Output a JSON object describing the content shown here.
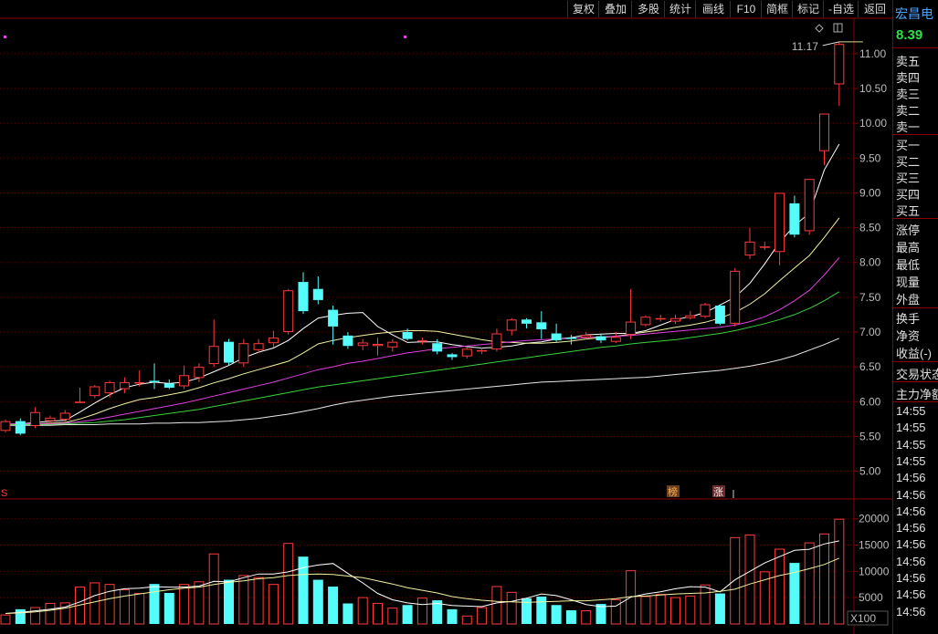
{
  "toolbar": {
    "buttons": [
      "复权",
      "叠加",
      "多股",
      "统计",
      "画线",
      "F10",
      "简框",
      "标记",
      "-自选",
      "返回"
    ]
  },
  "quote_panel": {
    "stock_name": "宏昌电",
    "price": "8.39",
    "price_color": "#2ee24b",
    "ask_labels": [
      "卖五",
      "卖四",
      "卖三",
      "卖二",
      "卖一"
    ],
    "bid_labels": [
      "买一",
      "买二",
      "买三",
      "买四",
      "买五"
    ],
    "stat_labels": [
      "涨停",
      "最高",
      "最低",
      "现量",
      "外盘"
    ],
    "stat_labels2": [
      "换手",
      "净资",
      "收益(-)"
    ],
    "status_label": "交易状态",
    "fund_label": "主力净额",
    "ticks": [
      "14:55",
      "14:55",
      "14:55",
      "14:55",
      "14:56",
      "14:56",
      "14:56",
      "14:56",
      "14:56",
      "14:56",
      "14:56",
      "14:56",
      "14:56"
    ]
  },
  "chart_data": {
    "type": "candlestick",
    "price_axis": {
      "ticks": [
        "11.00",
        "10.50",
        "10.00",
        "9.50",
        "9.00",
        "8.50",
        "8.00",
        "7.50",
        "7.00",
        "6.50",
        "6.00",
        "5.50",
        "5.00"
      ],
      "range": [
        4.85,
        11.3
      ]
    },
    "volume_axis": {
      "ticks": [
        "20000",
        "15000",
        "10000",
        "5000"
      ],
      "range": [
        0,
        21500
      ],
      "unit_label": "X100"
    },
    "max_label": "11.17",
    "event_markers": [
      {
        "label": "S"
      },
      {
        "label": "榜"
      },
      {
        "label": "涨"
      }
    ],
    "candles": [
      [
        5.58,
        5.72,
        5.74,
        5.56
      ],
      [
        5.72,
        5.54,
        5.76,
        5.52
      ],
      [
        5.65,
        5.85,
        5.92,
        5.62
      ],
      [
        5.72,
        5.77,
        5.8,
        5.68
      ],
      [
        5.74,
        5.84,
        5.88,
        5.7
      ],
      [
        6.0,
        6.0,
        6.2,
        5.98
      ],
      [
        6.08,
        6.22,
        6.24,
        6.05
      ],
      [
        6.12,
        6.28,
        6.3,
        6.06
      ],
      [
        6.18,
        6.28,
        6.35,
        6.12
      ],
      [
        6.26,
        6.28,
        6.45,
        6.22
      ],
      [
        6.3,
        6.28,
        6.55,
        6.18
      ],
      [
        6.26,
        6.2,
        6.32,
        6.18
      ],
      [
        6.22,
        6.38,
        6.52,
        6.18
      ],
      [
        6.34,
        6.5,
        6.55,
        6.28
      ],
      [
        6.54,
        6.8,
        7.18,
        6.5
      ],
      [
        6.86,
        6.56,
        6.9,
        6.52
      ],
      [
        6.55,
        6.84,
        6.9,
        6.5
      ],
      [
        6.74,
        6.84,
        6.9,
        6.7
      ],
      [
        6.84,
        6.92,
        7.02,
        6.78
      ],
      [
        7.0,
        7.6,
        7.62,
        6.96
      ],
      [
        7.72,
        7.3,
        7.86,
        7.26
      ],
      [
        7.62,
        7.46,
        7.8,
        7.4
      ],
      [
        7.32,
        7.08,
        7.38,
        6.82
      ],
      [
        6.95,
        6.8,
        7.0,
        6.76
      ],
      [
        6.8,
        6.85,
        6.9,
        6.74
      ],
      [
        6.8,
        6.83,
        6.92,
        6.66
      ],
      [
        6.78,
        6.86,
        6.9,
        6.72
      ],
      [
        7.0,
        6.9,
        7.05,
        6.88
      ],
      [
        6.86,
        6.88,
        6.92,
        6.82
      ],
      [
        6.84,
        6.72,
        6.9,
        6.68
      ],
      [
        6.68,
        6.64,
        6.7,
        6.6
      ],
      [
        6.65,
        6.76,
        6.78,
        6.62
      ],
      [
        6.72,
        6.74,
        6.78,
        6.68
      ],
      [
        6.75,
        6.98,
        7.05,
        6.72
      ],
      [
        7.02,
        7.18,
        7.2,
        6.95
      ],
      [
        7.18,
        7.12,
        7.2,
        7.05
      ],
      [
        7.14,
        7.04,
        7.3,
        6.9
      ],
      [
        6.98,
        6.88,
        7.12,
        6.85
      ],
      [
        6.92,
        6.9,
        6.96,
        6.82
      ],
      [
        6.92,
        6.96,
        7.0,
        6.9
      ],
      [
        6.94,
        6.88,
        6.98,
        6.84
      ],
      [
        6.86,
        6.93,
        7.0,
        6.84
      ],
      [
        6.96,
        7.15,
        7.62,
        6.9
      ],
      [
        7.1,
        7.22,
        7.24,
        7.08
      ],
      [
        7.18,
        7.2,
        7.25,
        7.15
      ],
      [
        7.15,
        7.2,
        7.25,
        7.12
      ],
      [
        7.2,
        7.24,
        7.3,
        7.18
      ],
      [
        7.22,
        7.4,
        7.42,
        7.2
      ],
      [
        7.38,
        7.12,
        7.4,
        7.1
      ],
      [
        7.12,
        7.88,
        7.92,
        7.08
      ],
      [
        8.1,
        8.3,
        8.5,
        8.05
      ],
      [
        8.22,
        8.23,
        8.3,
        8.18
      ],
      [
        8.15,
        9.0,
        9.0,
        7.96
      ],
      [
        8.85,
        8.4,
        8.96,
        8.36
      ],
      [
        8.45,
        9.2,
        9.2,
        8.4
      ],
      [
        9.6,
        10.14,
        10.14,
        9.4
      ],
      [
        10.56,
        11.14,
        11.17,
        10.25
      ]
    ],
    "ma": [
      {
        "name": "MA5",
        "color": "#ffffff",
        "values": [
          5.67,
          5.68,
          5.7,
          5.72,
          5.73,
          5.85,
          5.98,
          6.1,
          6.2,
          6.25,
          6.28,
          6.26,
          6.28,
          6.34,
          6.43,
          6.52,
          6.63,
          6.71,
          6.77,
          6.88,
          7.05,
          7.2,
          7.24,
          7.27,
          7.28,
          7.08,
          6.96,
          6.85,
          6.86,
          6.86,
          6.82,
          6.79,
          6.77,
          6.78,
          6.8,
          6.84,
          6.86,
          6.9,
          6.92,
          6.96,
          6.97,
          6.98,
          6.98,
          7.02,
          7.1,
          7.18,
          7.22,
          7.28,
          7.39,
          7.5,
          7.7,
          7.98,
          8.29,
          8.53,
          8.71,
          9.33,
          9.7
        ]
      },
      {
        "name": "MA10",
        "color": "#f2f2a0",
        "values": [
          5.68,
          5.68,
          5.68,
          5.69,
          5.7,
          5.75,
          5.82,
          5.9,
          5.97,
          6.03,
          6.06,
          6.1,
          6.14,
          6.2,
          6.27,
          6.33,
          6.4,
          6.46,
          6.52,
          6.58,
          6.7,
          6.83,
          6.88,
          6.92,
          6.95,
          6.98,
          7.0,
          7.02,
          7.02,
          7.01,
          6.97,
          6.93,
          6.89,
          6.86,
          6.85,
          6.84,
          6.84,
          6.85,
          6.87,
          6.9,
          6.92,
          6.94,
          6.97,
          7.0,
          7.03,
          7.07,
          7.1,
          7.14,
          7.2,
          7.28,
          7.4,
          7.55,
          7.74,
          7.92,
          8.1,
          8.36,
          8.64
        ]
      },
      {
        "name": "MA20",
        "color": "#e040e0",
        "values": [
          5.68,
          5.68,
          5.68,
          5.68,
          5.69,
          5.71,
          5.74,
          5.78,
          5.82,
          5.86,
          5.9,
          5.94,
          5.98,
          6.03,
          6.08,
          6.13,
          6.18,
          6.23,
          6.28,
          6.34,
          6.4,
          6.46,
          6.5,
          6.55,
          6.58,
          6.62,
          6.66,
          6.7,
          6.73,
          6.76,
          6.78,
          6.8,
          6.82,
          6.84,
          6.86,
          6.88,
          6.89,
          6.9,
          6.91,
          6.92,
          6.93,
          6.94,
          6.95,
          6.97,
          6.99,
          7.01,
          7.03,
          7.05,
          7.07,
          7.1,
          7.15,
          7.22,
          7.32,
          7.45,
          7.6,
          7.82,
          8.07
        ]
      },
      {
        "name": "MA30",
        "color": "#3ad23a",
        "values": [
          5.67,
          5.67,
          5.67,
          5.67,
          5.68,
          5.69,
          5.7,
          5.72,
          5.74,
          5.77,
          5.8,
          5.83,
          5.86,
          5.89,
          5.93,
          5.97,
          6.01,
          6.05,
          6.09,
          6.13,
          6.17,
          6.21,
          6.24,
          6.27,
          6.3,
          6.33,
          6.36,
          6.39,
          6.42,
          6.45,
          6.48,
          6.51,
          6.54,
          6.57,
          6.6,
          6.63,
          6.66,
          6.69,
          6.72,
          6.75,
          6.78,
          6.8,
          6.83,
          6.85,
          6.87,
          6.89,
          6.92,
          6.95,
          6.98,
          7.02,
          7.07,
          7.12,
          7.18,
          7.25,
          7.34,
          7.45,
          7.58
        ]
      },
      {
        "name": "MA60",
        "color": "#e8e8e8",
        "values": [
          5.66,
          5.66,
          5.66,
          5.66,
          5.67,
          5.67,
          5.67,
          5.68,
          5.68,
          5.68,
          5.69,
          5.69,
          5.7,
          5.7,
          5.71,
          5.72,
          5.74,
          5.76,
          5.79,
          5.82,
          5.86,
          5.9,
          5.95,
          5.99,
          6.02,
          6.05,
          6.08,
          6.1,
          6.12,
          6.14,
          6.16,
          6.18,
          6.2,
          6.22,
          6.24,
          6.26,
          6.28,
          6.29,
          6.3,
          6.31,
          6.32,
          6.33,
          6.34,
          6.35,
          6.37,
          6.39,
          6.41,
          6.43,
          6.45,
          6.48,
          6.51,
          6.55,
          6.6,
          6.66,
          6.74,
          6.82,
          6.91
        ]
      }
    ],
    "volumes": [
      1800,
      2800,
      3200,
      4000,
      4100,
      7100,
      7900,
      7600,
      6600,
      5900,
      7600,
      5900,
      7600,
      8100,
      13400,
      8400,
      9300,
      8900,
      7600,
      15400,
      12800,
      8400,
      7100,
      3900,
      5100,
      4000,
      3100,
      3600,
      5000,
      4500,
      2800,
      1600,
      3200,
      7200,
      6100,
      4900,
      5200,
      3600,
      2600,
      2600,
      3800,
      4700,
      10200,
      5300,
      5700,
      5100,
      5400,
      7500,
      5800,
      16500,
      17000,
      10000,
      14300,
      11600,
      15500,
      17200,
      20000
    ],
    "vol_ma": [
      {
        "name": "MAVOL5",
        "color": "#ffffff",
        "values": [
          2000,
          2200,
          2500,
          2800,
          3200,
          4200,
          5400,
          6200,
          6700,
          6800,
          7100,
          7000,
          7000,
          7200,
          8100,
          8000,
          8800,
          9500,
          9500,
          9900,
          10700,
          11200,
          11500,
          9600,
          7800,
          5800,
          4600,
          4000,
          3700,
          3900,
          3500,
          3400,
          3300,
          4000,
          4300,
          4900,
          5700,
          5400,
          4600,
          3700,
          3300,
          3400,
          5100,
          5700,
          6100,
          6700,
          7100,
          7000,
          6100,
          8400,
          10000,
          11600,
          12800,
          14000,
          14200,
          15200,
          15800
        ]
      },
      {
        "name": "MAVOL10",
        "color": "#f2f2a0",
        "values": [
          2000,
          2100,
          2300,
          2600,
          3000,
          3600,
          4200,
          4800,
          5300,
          5700,
          6100,
          6500,
          6800,
          7000,
          7500,
          7900,
          8200,
          8600,
          8800,
          9200,
          9400,
          9500,
          9400,
          9100,
          8800,
          8200,
          7600,
          6900,
          6400,
          5900,
          5200,
          4800,
          4500,
          4300,
          4200,
          4100,
          4200,
          4300,
          4400,
          4400,
          4600,
          4800,
          5200,
          5300,
          5500,
          5700,
          5800,
          5900,
          6200,
          6600,
          7600,
          8400,
          9200,
          9800,
          10500,
          11300,
          12500
        ]
      }
    ]
  }
}
